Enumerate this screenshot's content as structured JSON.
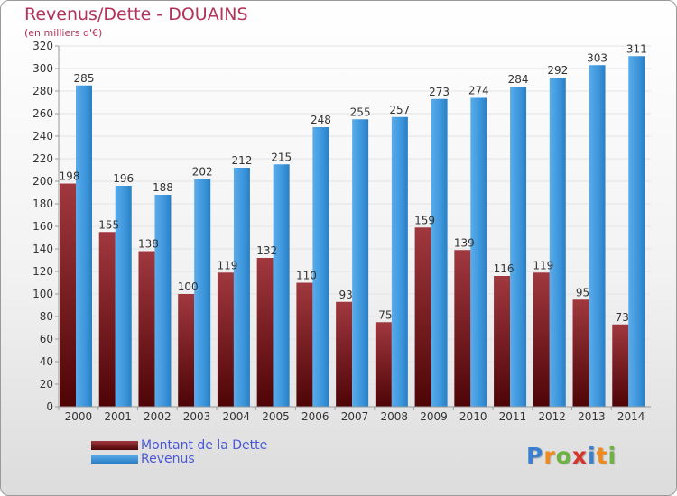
{
  "header": {
    "title": "Revenus/Dette - DOUAINS",
    "subtitle": "(en milliers d'€)"
  },
  "legend": {
    "dette_label": "Montant de la Dette",
    "revenus_label": "Revenus"
  },
  "logo": {
    "text": "Proxiti",
    "letters": [
      "P",
      "r",
      "o",
      "x",
      "i",
      "t",
      "i"
    ],
    "colors": [
      "#3a7fd0",
      "#f08a1c",
      "#6cb33f",
      "#d9342b",
      "#3a7fd0",
      "#f08a1c",
      "#6cb33f"
    ]
  },
  "colors": {
    "dette": "#6e0f14",
    "revenus": "#3c95db",
    "title": "#b2335a",
    "legend_text": "#4a58d8"
  },
  "chart_data": {
    "type": "bar",
    "title": "Revenus/Dette - DOUAINS",
    "subtitle": "(en milliers d'€)",
    "xlabel": "",
    "ylabel": "",
    "categories": [
      "2000",
      "2001",
      "2002",
      "2003",
      "2004",
      "2005",
      "2006",
      "2007",
      "2008",
      "2009",
      "2010",
      "2011",
      "2012",
      "2013",
      "2014"
    ],
    "series": [
      {
        "name": "Montant de la Dette",
        "values": [
          198,
          155,
          138,
          100,
          119,
          132,
          110,
          93,
          75,
          159,
          139,
          116,
          119,
          95,
          73
        ]
      },
      {
        "name": "Revenus",
        "values": [
          285,
          196,
          188,
          202,
          212,
          215,
          248,
          255,
          257,
          273,
          274,
          284,
          292,
          303,
          311
        ]
      }
    ],
    "ylim": [
      0,
      320
    ],
    "yticks": [
      0,
      20,
      40,
      60,
      80,
      100,
      120,
      140,
      160,
      180,
      200,
      220,
      240,
      260,
      280,
      300,
      320
    ],
    "grid": true,
    "legend_position": "bottom-left"
  }
}
